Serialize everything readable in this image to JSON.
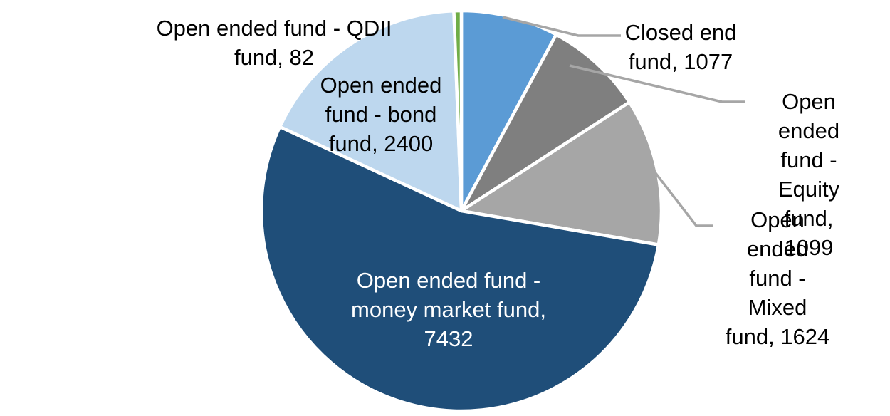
{
  "chart_data": {
    "type": "pie",
    "slices": [
      {
        "label": "Closed end fund",
        "value": 1077,
        "color": "#5B9BD5"
      },
      {
        "label": "Open ended fund - Equity fund",
        "value": 1099,
        "color": "#7F7F7F"
      },
      {
        "label": "Open ended fund - Mixed fund",
        "value": 1624,
        "color": "#A6A6A6"
      },
      {
        "label": "Open ended fund - money market fund",
        "value": 7432,
        "color": "#1F4E79"
      },
      {
        "label": "Open ended fund - bond fund",
        "value": 2400,
        "color": "#BDD7EE"
      },
      {
        "label": "Open ended fund - QDII fund",
        "value": 82,
        "color": "#70AD47"
      }
    ],
    "start_angle_deg": 0,
    "direction": "clockwise",
    "legend_position": "none",
    "data_labels": "category name, value"
  },
  "labels": {
    "closed_end": "Closed end\nfund, 1077",
    "equity": "Open ended\nfund - Equity\nfund, 1099",
    "mixed": "Open ended\nfund - Mixed\nfund, 1624",
    "money_market": "Open ended fund -\nmoney market fund,\n7432",
    "bond": "Open ended\nfund - bond\nfund, 2400",
    "qdii": "Open ended fund - QDII\nfund, 82"
  },
  "colors": {
    "background": "#FFFFFF",
    "slice_border": "#FFFFFF",
    "leader_line": "#A6A6A6",
    "label_text": "#000000",
    "inside_label_text": "#FFFFFF"
  }
}
